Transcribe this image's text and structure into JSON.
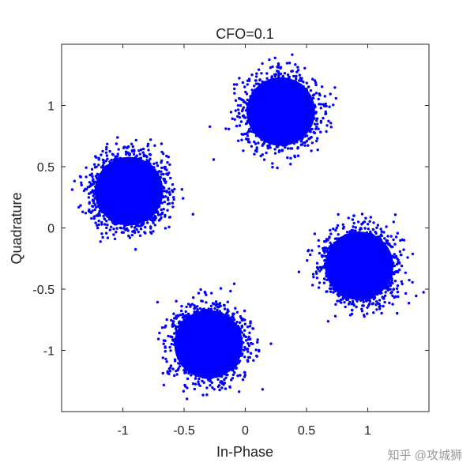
{
  "chart_data": {
    "type": "scatter",
    "title": "CFO=0.1",
    "xlabel": "In-Phase",
    "ylabel": "Quadrature",
    "xlim": [
      -1.5,
      1.5
    ],
    "ylim": [
      -1.5,
      1.5
    ],
    "xticks": [
      -1,
      -0.5,
      0,
      0.5,
      1
    ],
    "xtick_labels": [
      "-1",
      "-0.5",
      "0",
      "0.5",
      "1"
    ],
    "yticks": [
      -1,
      -0.5,
      0,
      0.5,
      1
    ],
    "ytick_labels": [
      "-1",
      "-0.5",
      "0",
      "0.5",
      "1"
    ],
    "grid": false,
    "marker_color": "#0000ff",
    "clusters": [
      {
        "center": [
          0.29,
          0.95
        ],
        "spread": 0.14
      },
      {
        "center": [
          -0.95,
          0.3
        ],
        "spread": 0.14
      },
      {
        "center": [
          -0.3,
          -0.95
        ],
        "spread": 0.14
      },
      {
        "center": [
          0.93,
          -0.31
        ],
        "spread": 0.14
      }
    ]
  },
  "watermark": "知乎 @攻城狮"
}
